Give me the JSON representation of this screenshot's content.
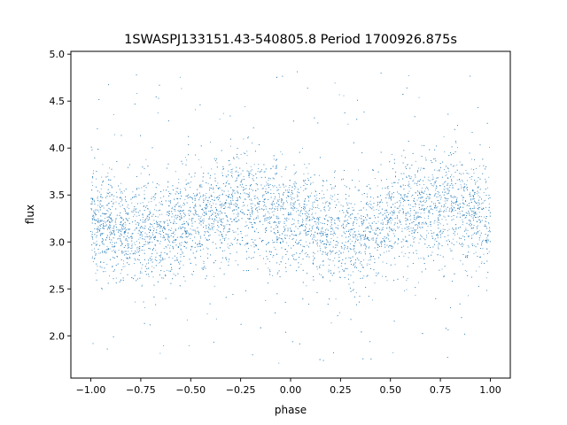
{
  "chart_data": {
    "type": "scatter",
    "title": "1SWASPJ133151.43-540805.8 Period 1700926.875s",
    "xlabel": "phase",
    "ylabel": "flux",
    "xlim": [
      -1.1,
      1.1
    ],
    "ylim": [
      1.55,
      5.03
    ],
    "xticks": [
      -1.0,
      -0.75,
      -0.5,
      -0.25,
      0.0,
      0.25,
      0.5,
      0.75,
      1.0
    ],
    "xtick_labels": [
      "−1.00",
      "−0.75",
      "−0.50",
      "−0.25",
      "0.00",
      "0.25",
      "0.50",
      "0.75",
      "1.00"
    ],
    "yticks": [
      2.0,
      2.5,
      3.0,
      3.5,
      4.0,
      4.5,
      5.0
    ],
    "ytick_labels": [
      "2.0",
      "2.5",
      "3.0",
      "3.5",
      "4.0",
      "4.5",
      "5.0"
    ],
    "grid": false,
    "legend": "none",
    "marker_color": "#1f77b4",
    "series": [
      {
        "phase_range": [
          -1.0,
          1.0
        ],
        "mirrored_about_phase": 0.0,
        "flux_profile": {
          "phase": [
            -1.0,
            -0.9,
            -0.8,
            -0.7,
            -0.6,
            -0.5,
            -0.4,
            -0.3,
            -0.2,
            -0.1,
            0.0,
            0.1,
            0.2,
            0.3,
            0.4,
            0.5,
            0.6,
            0.7,
            0.8,
            0.9,
            1.0
          ],
          "median_flux": [
            3.22,
            3.18,
            3.12,
            3.1,
            3.14,
            3.22,
            3.3,
            3.36,
            3.4,
            3.32,
            3.24,
            3.18,
            3.12,
            3.1,
            3.14,
            3.22,
            3.3,
            3.36,
            3.4,
            3.32,
            3.24
          ],
          "typical_min": [
            2.75,
            2.7,
            2.62,
            2.6,
            2.65,
            2.72,
            2.8,
            2.85,
            2.9,
            2.82,
            2.75,
            2.68,
            2.62,
            2.6,
            2.65,
            2.72,
            2.8,
            2.85,
            2.9,
            2.82,
            2.75
          ],
          "typical_max": [
            3.9,
            3.85,
            3.78,
            3.75,
            3.8,
            3.88,
            3.98,
            4.1,
            4.2,
            3.98,
            3.9,
            3.82,
            3.78,
            3.75,
            3.8,
            3.88,
            3.98,
            4.1,
            4.2,
            3.98,
            3.9
          ]
        },
        "flux_extremes": [
          1.7,
          4.85
        ]
      }
    ]
  }
}
